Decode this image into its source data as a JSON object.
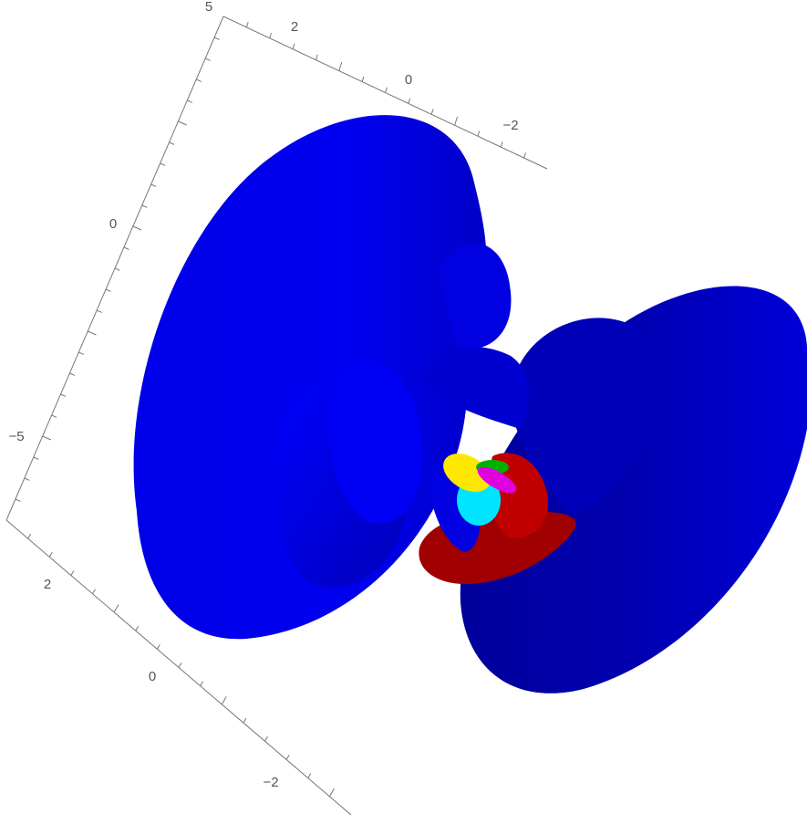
{
  "axes": {
    "vertical": {
      "labels": [
        "5",
        "0",
        "−5"
      ]
    },
    "top": {
      "labels": [
        "2",
        "0",
        "−2"
      ]
    },
    "bottom": {
      "labels": [
        "2",
        "0",
        "−2"
      ]
    }
  }
}
